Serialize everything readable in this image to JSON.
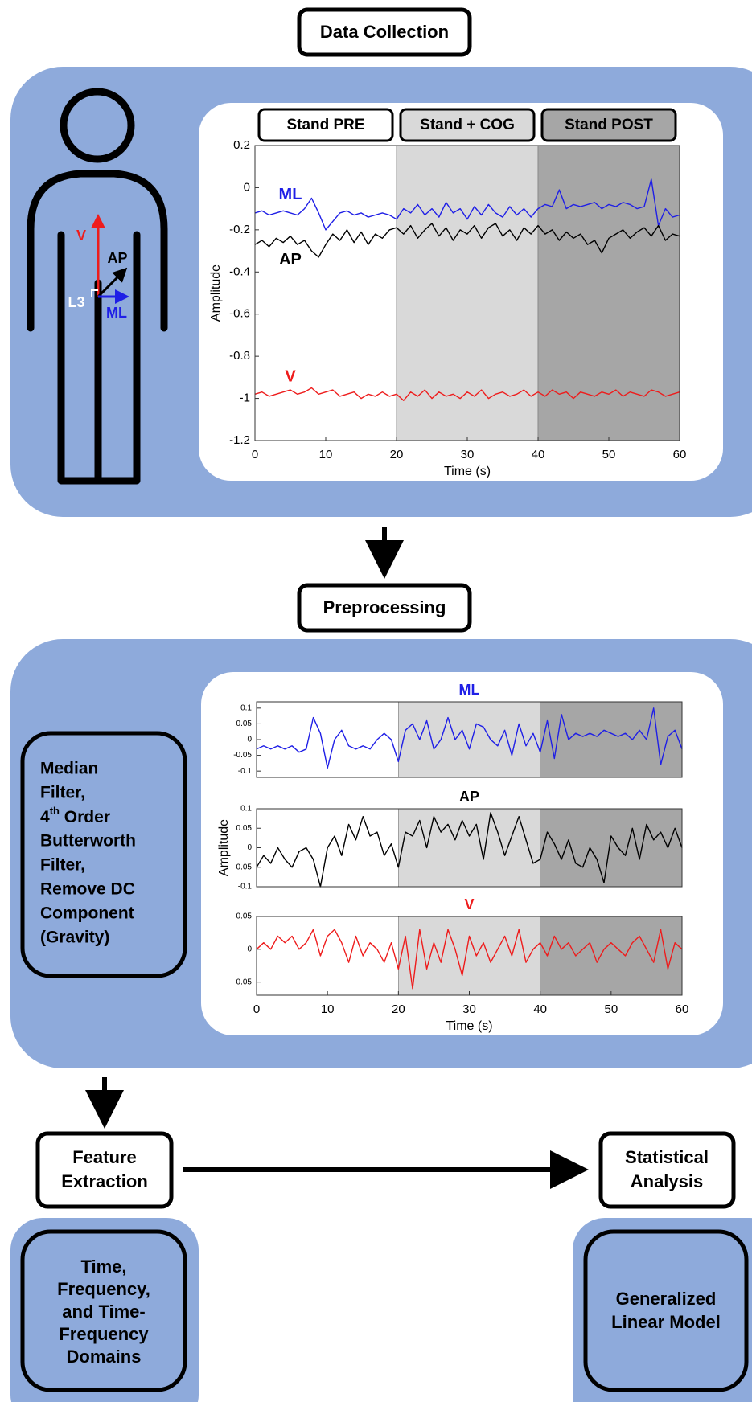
{
  "data_collection": {
    "title": "Data Collection",
    "body_labels": {
      "v": "V",
      "ap": "AP",
      "l3": "L3",
      "ml": "ML"
    }
  },
  "preprocessing": {
    "title": "Preprocessing",
    "method": {
      "line1": "Median",
      "line2": "Filter,",
      "line3_num": "4",
      "line3_sup": "th",
      "line3_rest": " Order",
      "line4": "Butterworth",
      "line5": "Filter,",
      "line6": "Remove DC",
      "line7": "Component",
      "line8": "(Gravity)"
    }
  },
  "feature_extraction": {
    "title_line1": "Feature",
    "title_line2": "Extraction",
    "domains": [
      "Time,",
      "Frequency,",
      "and Time-",
      "Frequency",
      "Domains"
    ]
  },
  "statistical_analysis": {
    "title_line1": "Statistical",
    "title_line2": "Analysis",
    "model": [
      "Generalized",
      "Linear Model"
    ]
  },
  "chart_data": [
    {
      "type": "line",
      "xlabel": "Time (s)",
      "ylabel": "Amplitude",
      "x": [
        0,
        1,
        2,
        3,
        4,
        5,
        6,
        7,
        8,
        9,
        10,
        11,
        12,
        13,
        14,
        15,
        16,
        17,
        18,
        19,
        20,
        21,
        22,
        23,
        24,
        25,
        26,
        27,
        28,
        29,
        30,
        31,
        32,
        33,
        34,
        35,
        36,
        37,
        38,
        39,
        40,
        41,
        42,
        43,
        44,
        45,
        46,
        47,
        48,
        49,
        50,
        51,
        52,
        53,
        54,
        55,
        56,
        57,
        58,
        59,
        60
      ],
      "xlim": [
        0,
        60
      ],
      "xticks": [
        0,
        10,
        20,
        30,
        40,
        50,
        60
      ],
      "ylim": [
        -1.2,
        0.2
      ],
      "yticks": [
        0.2,
        0,
        -0.2,
        -0.4,
        -0.6,
        -0.8,
        -1,
        -1.2
      ],
      "bands": [
        {
          "name": "Stand PRE",
          "from": 0,
          "to": 20,
          "color": "#ffffff"
        },
        {
          "name": "Stand + COG",
          "from": 20,
          "to": 40,
          "color": "#d9d9d9"
        },
        {
          "name": "Stand POST",
          "from": 40,
          "to": 60,
          "color": "#a6a6a6"
        }
      ],
      "series": [
        {
          "name": "ML",
          "color": "#1f1fe6",
          "values": [
            -0.12,
            -0.11,
            -0.13,
            -0.12,
            -0.11,
            -0.12,
            -0.13,
            -0.1,
            -0.05,
            -0.12,
            -0.2,
            -0.16,
            -0.12,
            -0.11,
            -0.13,
            -0.12,
            -0.14,
            -0.13,
            -0.12,
            -0.13,
            -0.15,
            -0.1,
            -0.12,
            -0.08,
            -0.13,
            -0.1,
            -0.14,
            -0.07,
            -0.12,
            -0.1,
            -0.15,
            -0.09,
            -0.13,
            -0.08,
            -0.12,
            -0.14,
            -0.09,
            -0.13,
            -0.1,
            -0.14,
            -0.1,
            -0.08,
            -0.09,
            -0.01,
            -0.1,
            -0.08,
            -0.09,
            -0.08,
            -0.07,
            -0.1,
            -0.08,
            -0.09,
            -0.07,
            -0.08,
            -0.1,
            -0.09,
            0.04,
            -0.18,
            -0.1,
            -0.14,
            -0.13
          ]
        },
        {
          "name": "AP",
          "color": "#000000",
          "values": [
            -0.27,
            -0.25,
            -0.28,
            -0.24,
            -0.26,
            -0.23,
            -0.27,
            -0.25,
            -0.3,
            -0.33,
            -0.27,
            -0.22,
            -0.25,
            -0.2,
            -0.26,
            -0.21,
            -0.27,
            -0.22,
            -0.24,
            -0.2,
            -0.19,
            -0.22,
            -0.18,
            -0.24,
            -0.2,
            -0.17,
            -0.23,
            -0.19,
            -0.25,
            -0.2,
            -0.22,
            -0.18,
            -0.24,
            -0.19,
            -0.17,
            -0.23,
            -0.2,
            -0.25,
            -0.19,
            -0.22,
            -0.18,
            -0.22,
            -0.2,
            -0.25,
            -0.21,
            -0.24,
            -0.22,
            -0.27,
            -0.25,
            -0.31,
            -0.24,
            -0.22,
            -0.2,
            -0.24,
            -0.21,
            -0.19,
            -0.23,
            -0.18,
            -0.25,
            -0.22,
            -0.23
          ]
        },
        {
          "name": "V",
          "color": "#ee1c1c",
          "values": [
            -0.98,
            -0.97,
            -0.99,
            -0.98,
            -0.97,
            -0.96,
            -0.98,
            -0.97,
            -0.95,
            -0.98,
            -0.97,
            -0.96,
            -0.99,
            -0.98,
            -0.97,
            -1.0,
            -0.98,
            -0.99,
            -0.97,
            -0.99,
            -0.98,
            -1.01,
            -0.97,
            -0.99,
            -0.96,
            -1.0,
            -0.97,
            -0.99,
            -0.98,
            -1.0,
            -0.97,
            -0.99,
            -0.96,
            -1.0,
            -0.98,
            -0.97,
            -0.99,
            -0.98,
            -0.96,
            -0.99,
            -0.97,
            -0.99,
            -0.96,
            -0.98,
            -0.97,
            -1.0,
            -0.97,
            -0.98,
            -0.99,
            -0.97,
            -0.98,
            -0.96,
            -0.99,
            -0.97,
            -0.98,
            -0.99,
            -0.96,
            -0.97,
            -0.99,
            -0.98,
            -0.97
          ]
        }
      ]
    },
    {
      "type": "line",
      "title": "ML",
      "x": [
        0,
        1,
        2,
        3,
        4,
        5,
        6,
        7,
        8,
        9,
        10,
        11,
        12,
        13,
        14,
        15,
        16,
        17,
        18,
        19,
        20,
        21,
        22,
        23,
        24,
        25,
        26,
        27,
        28,
        29,
        30,
        31,
        32,
        33,
        34,
        35,
        36,
        37,
        38,
        39,
        40,
        41,
        42,
        43,
        44,
        45,
        46,
        47,
        48,
        49,
        50,
        51,
        52,
        53,
        54,
        55,
        56,
        57,
        58,
        59,
        60
      ],
      "xlim": [
        0,
        60
      ],
      "ylim": [
        -0.12,
        0.12
      ],
      "yticks": [
        0.1,
        0.05,
        0,
        -0.05,
        -0.1
      ],
      "bands": [
        {
          "from": 20,
          "to": 40,
          "color": "#d9d9d9"
        },
        {
          "from": 40,
          "to": 60,
          "color": "#a6a6a6"
        }
      ],
      "series": [
        {
          "name": "ML",
          "color": "#1f1fe6",
          "values": [
            -0.03,
            -0.02,
            -0.03,
            -0.02,
            -0.03,
            -0.02,
            -0.04,
            -0.03,
            0.07,
            0.02,
            -0.09,
            0.0,
            0.03,
            -0.02,
            -0.03,
            -0.02,
            -0.03,
            0.0,
            0.02,
            0.0,
            -0.07,
            0.03,
            0.05,
            0.0,
            0.06,
            -0.03,
            0.0,
            0.07,
            0.0,
            0.03,
            -0.03,
            0.05,
            0.04,
            0.0,
            -0.02,
            0.03,
            -0.05,
            0.05,
            -0.02,
            0.02,
            -0.04,
            0.06,
            -0.06,
            0.08,
            0.0,
            0.02,
            0.01,
            0.02,
            0.01,
            0.03,
            0.02,
            0.01,
            0.02,
            0.0,
            0.03,
            0.0,
            0.1,
            -0.08,
            0.01,
            0.03,
            -0.03
          ]
        }
      ]
    },
    {
      "type": "line",
      "title": "AP",
      "ylabel": "Amplitude",
      "x": [
        0,
        1,
        2,
        3,
        4,
        5,
        6,
        7,
        8,
        9,
        10,
        11,
        12,
        13,
        14,
        15,
        16,
        17,
        18,
        19,
        20,
        21,
        22,
        23,
        24,
        25,
        26,
        27,
        28,
        29,
        30,
        31,
        32,
        33,
        34,
        35,
        36,
        37,
        38,
        39,
        40,
        41,
        42,
        43,
        44,
        45,
        46,
        47,
        48,
        49,
        50,
        51,
        52,
        53,
        54,
        55,
        56,
        57,
        58,
        59,
        60
      ],
      "xlim": [
        0,
        60
      ],
      "ylim": [
        -0.1,
        0.1
      ],
      "yticks": [
        0.1,
        0.05,
        0,
        -0.05,
        -0.1
      ],
      "bands": [
        {
          "from": 20,
          "to": 40,
          "color": "#d9d9d9"
        },
        {
          "from": 40,
          "to": 60,
          "color": "#a6a6a6"
        }
      ],
      "series": [
        {
          "name": "AP",
          "color": "#000000",
          "values": [
            -0.05,
            -0.02,
            -0.04,
            0.0,
            -0.03,
            -0.05,
            -0.01,
            0.0,
            -0.03,
            -0.1,
            0.0,
            0.03,
            -0.02,
            0.06,
            0.02,
            0.08,
            0.03,
            0.04,
            -0.02,
            0.01,
            -0.05,
            0.04,
            0.03,
            0.07,
            0.0,
            0.08,
            0.04,
            0.06,
            0.02,
            0.07,
            0.03,
            0.06,
            -0.03,
            0.09,
            0.04,
            -0.02,
            0.03,
            0.08,
            0.02,
            -0.04,
            -0.03,
            0.04,
            0.01,
            -0.03,
            0.02,
            -0.04,
            -0.05,
            0.0,
            -0.03,
            -0.09,
            0.03,
            0.0,
            -0.02,
            0.05,
            -0.03,
            0.06,
            0.02,
            0.04,
            0.0,
            0.05,
            0.0
          ]
        }
      ]
    },
    {
      "type": "line",
      "title": "V",
      "xlabel": "Time (s)",
      "x": [
        0,
        1,
        2,
        3,
        4,
        5,
        6,
        7,
        8,
        9,
        10,
        11,
        12,
        13,
        14,
        15,
        16,
        17,
        18,
        19,
        20,
        21,
        22,
        23,
        24,
        25,
        26,
        27,
        28,
        29,
        30,
        31,
        32,
        33,
        34,
        35,
        36,
        37,
        38,
        39,
        40,
        41,
        42,
        43,
        44,
        45,
        46,
        47,
        48,
        49,
        50,
        51,
        52,
        53,
        54,
        55,
        56,
        57,
        58,
        59,
        60
      ],
      "xlim": [
        0,
        60
      ],
      "xticks": [
        0,
        10,
        20,
        30,
        40,
        50,
        60
      ],
      "ylim": [
        -0.07,
        0.05
      ],
      "yticks": [
        0.05,
        0,
        -0.05
      ],
      "bands": [
        {
          "from": 20,
          "to": 40,
          "color": "#d9d9d9"
        },
        {
          "from": 40,
          "to": 60,
          "color": "#a6a6a6"
        }
      ],
      "series": [
        {
          "name": "V",
          "color": "#ee1c1c",
          "values": [
            0.0,
            0.01,
            0.0,
            0.02,
            0.01,
            0.02,
            0.0,
            0.01,
            0.03,
            -0.01,
            0.02,
            0.03,
            0.01,
            -0.02,
            0.02,
            -0.01,
            0.01,
            0.0,
            -0.02,
            0.01,
            -0.03,
            0.02,
            -0.06,
            0.03,
            -0.03,
            0.01,
            -0.02,
            0.03,
            0.0,
            -0.04,
            0.02,
            -0.01,
            0.01,
            -0.02,
            0.0,
            0.02,
            -0.01,
            0.03,
            -0.02,
            0.0,
            0.01,
            -0.01,
            0.02,
            0.0,
            0.01,
            -0.01,
            0.0,
            0.01,
            -0.02,
            0.0,
            0.01,
            0.0,
            -0.01,
            0.01,
            0.02,
            0.0,
            -0.02,
            0.03,
            -0.03,
            0.01,
            0.0
          ]
        }
      ]
    }
  ]
}
